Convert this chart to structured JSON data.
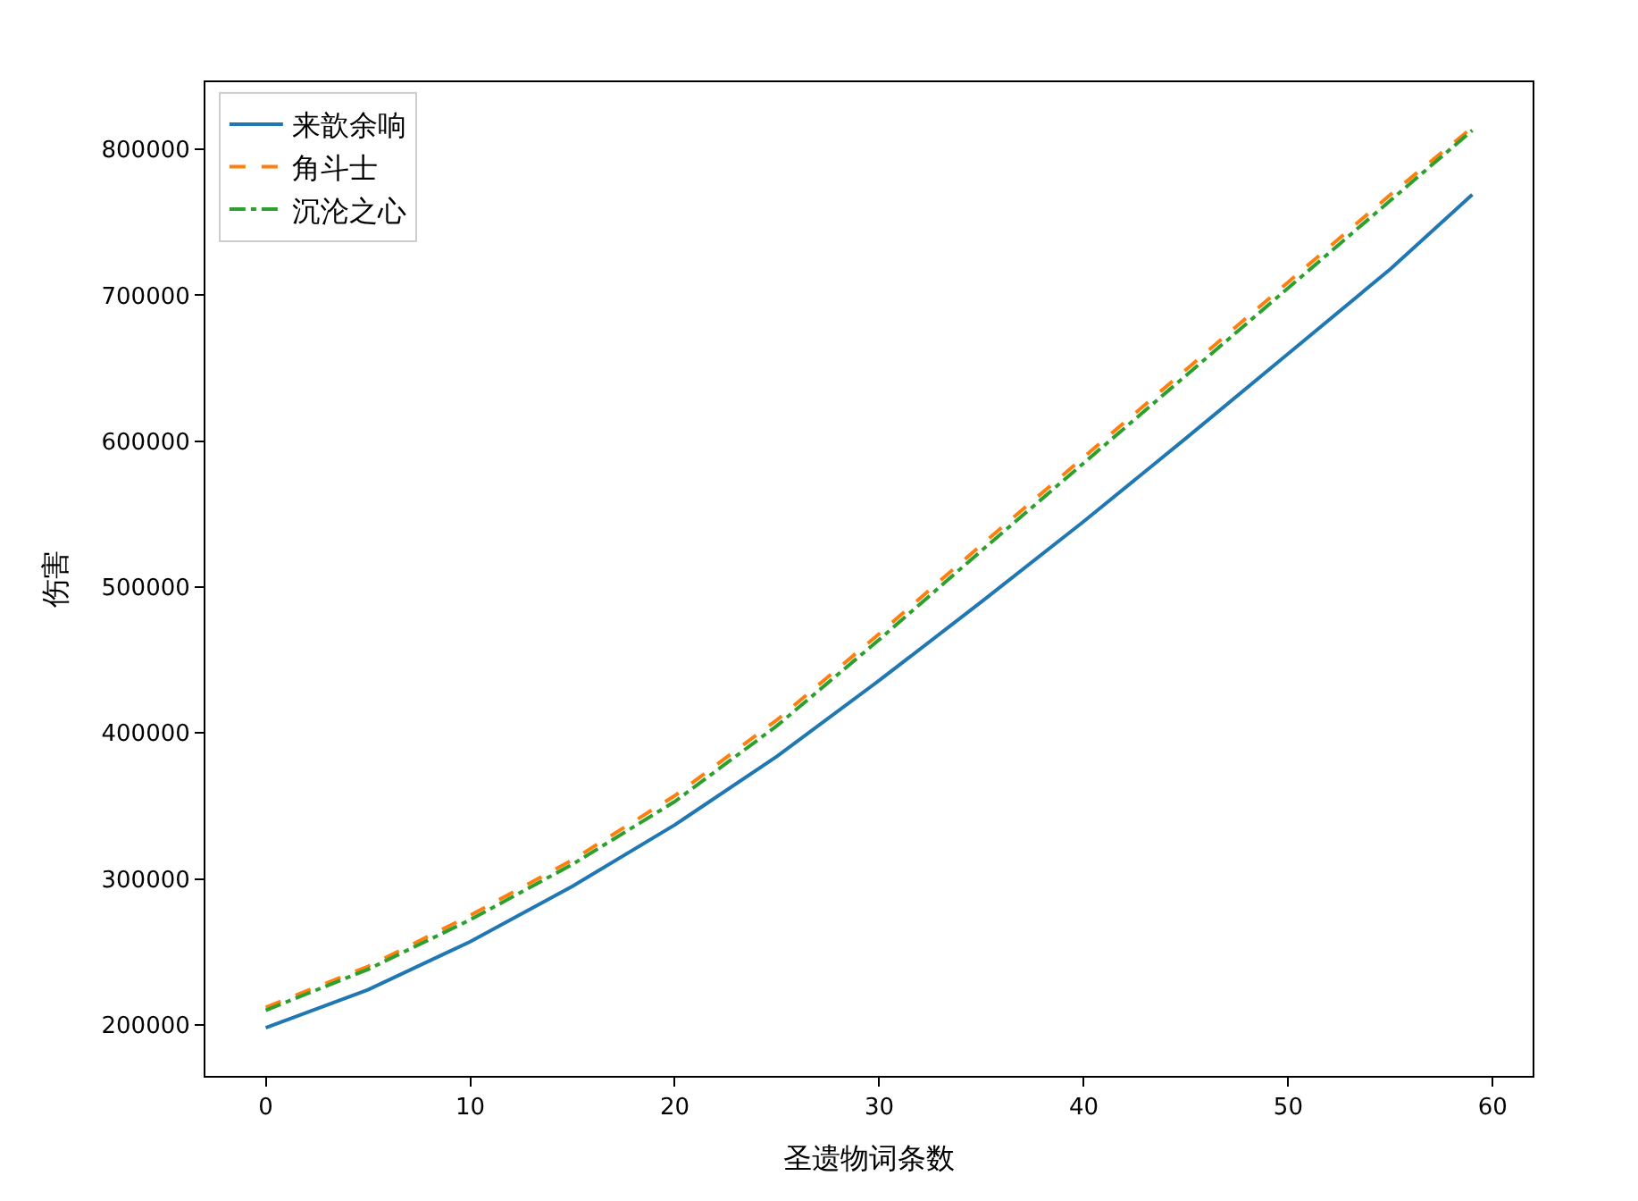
{
  "chart_data": {
    "type": "line",
    "xlabel": "圣遗物词条数",
    "ylabel": "伤害",
    "x": [
      0,
      5,
      10,
      15,
      20,
      25,
      30,
      35,
      40,
      45,
      50,
      55,
      59
    ],
    "series": [
      {
        "name": "来歆余响",
        "color": "#1f77b4",
        "line_style": "solid",
        "values": [
          198000,
          224000,
          257000,
          295000,
          337000,
          384000,
          436000,
          490000,
          545000,
          602000,
          660000,
          718000,
          769000
        ]
      },
      {
        "name": "角斗士",
        "color": "#ff7f0e",
        "line_style": "dashed",
        "values": [
          212000,
          240000,
          275000,
          313000,
          357000,
          409000,
          468000,
          529000,
          589000,
          649000,
          709000,
          769000,
          815000
        ]
      },
      {
        "name": "沉沦之心",
        "color": "#2ca02c",
        "line_style": "dashdot",
        "values": [
          210000,
          238000,
          272000,
          310000,
          353000,
          405000,
          464000,
          525000,
          585000,
          645000,
          705000,
          765000,
          813000
        ]
      }
    ],
    "xlim": [
      -2.95,
      61.95
    ],
    "xticks": [
      0,
      10,
      20,
      30,
      40,
      50,
      60
    ],
    "ylim": [
      165000,
      846000
    ],
    "yticks": [
      200000,
      300000,
      400000,
      500000,
      600000,
      700000,
      800000
    ],
    "grid": false,
    "legend": "top left",
    "marker": "none"
  }
}
